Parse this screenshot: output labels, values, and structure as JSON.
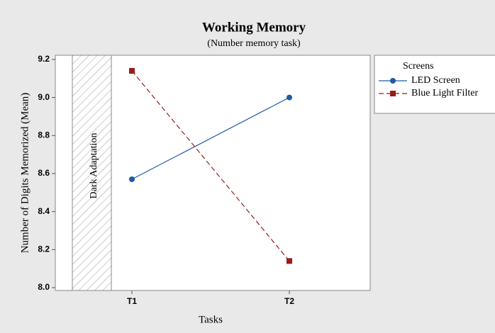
{
  "chart_data": {
    "type": "line",
    "title": "Working Memory",
    "subtitle": "(Number memory task)",
    "x_label": "Tasks",
    "y_label": "Number of Digits Memorized (Mean)",
    "annotation": "Dark Adaptation",
    "legend_title": "Screens",
    "legend": "right",
    "categories": [
      "T1",
      "T2"
    ],
    "series": [
      {
        "name": "LED Screen",
        "color": "#1f5aa6",
        "marker": "circle",
        "dash": "solid",
        "values": [
          8.57,
          9.0
        ]
      },
      {
        "name": "Blue Light Filter",
        "color": "#9b1b1b",
        "marker": "square",
        "dash": "dashed",
        "values": [
          9.14,
          8.14
        ]
      }
    ],
    "ylim": [
      7.985,
      9.222
    ],
    "yticks": [
      {
        "value": 8.0,
        "label": "8.0"
      },
      8.2,
      8.4,
      8.6,
      8.8,
      {
        "value": 9.0,
        "label": "9.0"
      },
      9.2
    ]
  }
}
